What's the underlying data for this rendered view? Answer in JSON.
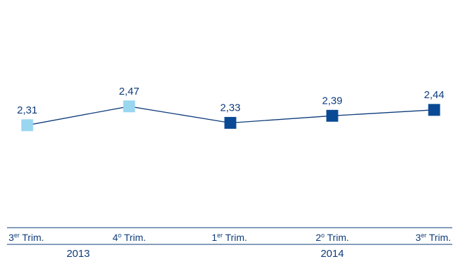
{
  "chart_data": {
    "type": "line",
    "title": "",
    "xlabel": "",
    "ylabel": "",
    "categories": [
      {
        "main": "3",
        "sup": "er",
        "rest": " Trim."
      },
      {
        "main": "4",
        "sup": "o",
        "rest": " Trim."
      },
      {
        "main": "1",
        "sup": "er",
        "rest": " Trim."
      },
      {
        "main": "2",
        "sup": "o",
        "rest": " Trim."
      },
      {
        "main": "3",
        "sup": "er",
        "rest": " Trim."
      }
    ],
    "values": [
      2.31,
      2.47,
      2.33,
      2.39,
      2.44
    ],
    "value_labels": [
      "2,31",
      "2,47",
      "2,33",
      "2,39",
      "2,44"
    ],
    "year_groups": [
      {
        "label": "2013",
        "start": 0,
        "end": 1
      },
      {
        "label": "2014",
        "start": 2,
        "end": 4
      }
    ],
    "marker_colors": [
      "#99d6f0",
      "#99d6f0",
      "#0a4a94",
      "#0a4a94",
      "#0a4a94"
    ],
    "line_color": "#0d3b7a",
    "axis_color": "#0d3b7a",
    "ylim": [
      1.6,
      2.9
    ],
    "grid": false,
    "legend": "none"
  }
}
